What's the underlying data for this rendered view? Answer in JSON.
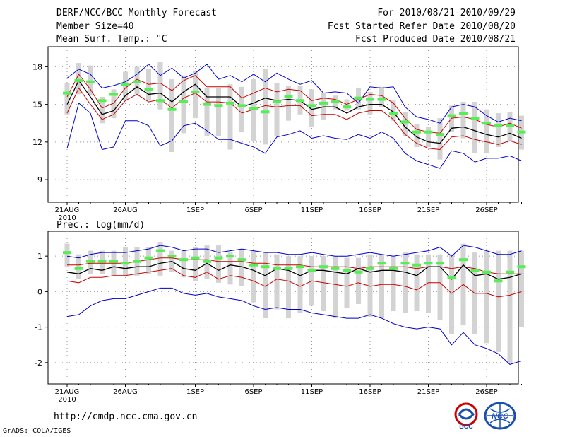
{
  "header": {
    "title": "DERF/NCC/BCC Monthly Forecast",
    "member_size": "Member Size=40",
    "variable": "Mean Surf. Temp.: °C",
    "forecast_period": "For 2010/08/21-2010/09/29",
    "start_date": "Fcst Started Refer Date 2010/08/20",
    "produced_date": "Fcst Produced Date 2010/08/21"
  },
  "footer": {
    "url": "http://cmdp.ncc.cma.gov.cn",
    "grads": "GrADS: COLA/IGES",
    "logo_left_text": "BCC",
    "logo_right_text": "NCC"
  },
  "colors": {
    "envelope": "#0000cc",
    "inner": "#cc0000",
    "mean": "#000000",
    "median": "#55ee55",
    "box": "#d3d3d3",
    "grid": "#999999"
  },
  "chart_data": [
    {
      "type": "box_line",
      "title": "Mean Surf. Temp.: °C",
      "ylabel": "Mean Surf. Temp. (°C)",
      "x_ticks": [
        "21AUG",
        "26AUG",
        "1SEP",
        "6SEP",
        "11SEP",
        "16SEP",
        "21SEP",
        "26SEP"
      ],
      "x_tick_days": [
        0,
        5,
        11,
        16,
        21,
        26,
        31,
        36
      ],
      "x_sublabel": "2010",
      "ylim": [
        7.2,
        19.6
      ],
      "y_ticks": [
        9,
        12,
        15,
        18
      ],
      "days": 40,
      "series": [
        {
          "name": "max",
          "color": "#0000cc",
          "values": [
            17.1,
            17.8,
            17.4,
            16.3,
            16.5,
            16.8,
            17.4,
            18.2,
            17.3,
            17.9,
            17.1,
            17.5,
            18.2,
            17.0,
            17.3,
            16.8,
            17.4,
            16.8,
            17.5,
            17.0,
            16.6,
            16.9,
            15.9,
            16.0,
            15.9,
            15.1,
            16.4,
            16.3,
            16.4,
            14.8,
            14.0,
            13.8,
            13.5,
            14.8,
            15.0,
            14.8,
            14.1,
            13.6,
            13.9,
            13.7
          ]
        },
        {
          "name": "upper",
          "color": "#cc0000",
          "values": [
            15.6,
            17.4,
            16.2,
            14.7,
            15.1,
            16.3,
            17.0,
            16.6,
            16.7,
            16.1,
            16.9,
            17.3,
            16.4,
            16.4,
            16.4,
            15.5,
            15.9,
            16.3,
            16.0,
            16.2,
            16.1,
            15.3,
            15.5,
            15.4,
            15.0,
            15.4,
            15.8,
            15.7,
            15.1,
            13.9,
            13.0,
            12.8,
            12.7,
            13.9,
            14.0,
            13.8,
            13.4,
            13.2,
            13.5,
            13.1
          ]
        },
        {
          "name": "mean",
          "color": "#000000",
          "values": [
            15.0,
            16.9,
            15.6,
            14.2,
            14.5,
            15.7,
            16.4,
            15.8,
            15.9,
            15.2,
            16.0,
            16.6,
            15.6,
            15.6,
            15.6,
            14.8,
            15.1,
            15.5,
            15.3,
            15.4,
            15.3,
            14.6,
            14.8,
            14.8,
            14.3,
            14.8,
            15.0,
            15.0,
            14.4,
            13.2,
            12.4,
            12.0,
            11.9,
            13.1,
            13.2,
            12.9,
            12.6,
            12.4,
            12.7,
            12.3
          ]
        },
        {
          "name": "lower",
          "color": "#cc0000",
          "values": [
            14.3,
            16.3,
            15.0,
            13.8,
            14.2,
            15.3,
            15.8,
            15.2,
            15.4,
            14.7,
            15.5,
            15.9,
            15.2,
            15.2,
            15.1,
            14.3,
            14.6,
            14.9,
            14.8,
            14.9,
            14.9,
            14.1,
            14.2,
            14.2,
            13.8,
            14.3,
            14.5,
            14.5,
            13.8,
            12.6,
            11.9,
            11.5,
            11.4,
            12.4,
            12.5,
            12.2,
            12.0,
            11.8,
            12.1,
            11.8
          ]
        },
        {
          "name": "min",
          "color": "#0000cc",
          "values": [
            11.5,
            15.1,
            14.3,
            11.4,
            11.6,
            13.7,
            13.7,
            13.3,
            11.7,
            12.1,
            13.3,
            13.5,
            12.9,
            12.2,
            12.2,
            11.9,
            11.6,
            11.1,
            12.4,
            12.6,
            12.9,
            12.3,
            12.5,
            12.3,
            12.2,
            12.6,
            12.3,
            12.8,
            12.3,
            11.1,
            10.5,
            10.2,
            9.9,
            11.3,
            11.1,
            10.4,
            10.7,
            10.7,
            10.9,
            10.5
          ]
        },
        {
          "name": "median",
          "color": "#55ee55",
          "values": [
            15.9,
            16.9,
            16.8,
            15.3,
            15.8,
            16.6,
            16.8,
            16.2,
            15.3,
            14.6,
            15.2,
            16.0,
            15.0,
            14.9,
            15.1,
            14.9,
            14.7,
            14.4,
            15.2,
            15.6,
            15.3,
            14.9,
            15.1,
            15.2,
            14.8,
            15.5,
            15.4,
            15.4,
            14.3,
            13.6,
            12.8,
            12.8,
            12.6,
            14.1,
            14.3,
            13.9,
            13.5,
            13.3,
            13.3,
            12.8
          ]
        }
      ],
      "boxes": {
        "top": [
          16.7,
          18.3,
          18.1,
          15.6,
          16.2,
          17.6,
          18.0,
          17.8,
          18.4,
          17.0,
          17.3,
          17.7,
          16.3,
          16.3,
          16.6,
          16.4,
          17.0,
          17.8,
          16.7,
          16.5,
          16.5,
          16.2,
          15.9,
          15.7,
          15.4,
          16.3,
          16.0,
          16.4,
          15.3,
          14.4,
          13.4,
          13.2,
          13.9,
          14.9,
          15.2,
          15.2,
          14.6,
          14.3,
          14.4,
          14.1
        ],
        "bottom": [
          14.2,
          15.8,
          15.7,
          13.5,
          13.9,
          15.3,
          15.8,
          15.3,
          14.6,
          11.2,
          12.7,
          13.9,
          12.5,
          12.5,
          11.4,
          12.8,
          12.1,
          11.8,
          12.5,
          13.7,
          14.2,
          13.2,
          13.8,
          14.6,
          14.5,
          14.6,
          14.2,
          14.8,
          13.7,
          12.5,
          11.6,
          11.6,
          10.6,
          12.8,
          12.3,
          11.1,
          11.1,
          11.6,
          12.1,
          11.4
        ]
      }
    },
    {
      "type": "box_line",
      "title": "Prec.: log(mm/d)",
      "ylabel": "log(mm/d)",
      "x_ticks": [
        "21AUG",
        "26AUG",
        "1SEP",
        "6SEP",
        "11SEP",
        "16SEP",
        "21SEP",
        "26SEP"
      ],
      "x_tick_days": [
        0,
        5,
        11,
        16,
        21,
        26,
        31,
        36
      ],
      "x_sublabel": "2010",
      "ylim": [
        -2.6,
        1.7
      ],
      "y_ticks": [
        -2,
        -1,
        0,
        1
      ],
      "days": 40,
      "series": [
        {
          "name": "max",
          "color": "#0000cc",
          "values": [
            1.0,
            0.95,
            1.05,
            1.1,
            1.1,
            1.1,
            1.15,
            1.2,
            1.3,
            1.25,
            1.15,
            1.2,
            1.2,
            1.1,
            1.15,
            1.2,
            1.15,
            1.1,
            1.1,
            1.05,
            1.05,
            1.1,
            1.05,
            1.0,
            1.0,
            1.05,
            1.1,
            1.05,
            1.0,
            1.05,
            1.1,
            1.15,
            1.25,
            1.0,
            1.3,
            1.25,
            1.15,
            1.05,
            1.05,
            1.15
          ]
        },
        {
          "name": "upper",
          "color": "#cc0000",
          "values": [
            0.75,
            0.75,
            0.8,
            0.8,
            0.8,
            0.8,
            0.85,
            0.9,
            0.95,
            0.95,
            0.9,
            0.9,
            0.9,
            0.85,
            0.85,
            0.85,
            0.8,
            0.8,
            0.75,
            0.75,
            0.75,
            0.7,
            0.7,
            0.7,
            0.7,
            0.65,
            0.7,
            0.7,
            0.7,
            0.7,
            0.65,
            0.7,
            0.7,
            0.65,
            0.7,
            0.65,
            0.55,
            0.5,
            0.5,
            0.5
          ]
        },
        {
          "name": "mean",
          "color": "#000000",
          "values": [
            0.55,
            0.5,
            0.65,
            0.6,
            0.7,
            0.65,
            0.7,
            0.7,
            0.8,
            0.85,
            0.65,
            0.6,
            0.8,
            0.6,
            0.75,
            0.7,
            0.6,
            0.45,
            0.65,
            0.6,
            0.45,
            0.6,
            0.6,
            0.55,
            0.5,
            0.65,
            0.55,
            0.6,
            0.6,
            0.55,
            0.45,
            0.7,
            0.7,
            0.35,
            0.75,
            0.45,
            0.5,
            0.35,
            0.4,
            0.5
          ]
        },
        {
          "name": "lower",
          "color": "#cc0000",
          "values": [
            0.3,
            0.25,
            0.4,
            0.4,
            0.45,
            0.45,
            0.5,
            0.55,
            0.6,
            0.65,
            0.45,
            0.4,
            0.55,
            0.35,
            0.45,
            0.4,
            0.3,
            0.15,
            0.35,
            0.3,
            0.15,
            0.3,
            0.25,
            0.2,
            0.15,
            0.25,
            0.15,
            0.2,
            0.2,
            0.15,
            0.05,
            0.25,
            0.25,
            -0.05,
            0.2,
            -0.05,
            -0.05,
            -0.15,
            -0.1,
            0.0
          ]
        },
        {
          "name": "min",
          "color": "#0000cc",
          "values": [
            -0.7,
            -0.65,
            -0.4,
            -0.25,
            -0.2,
            -0.2,
            -0.1,
            0.0,
            0.1,
            0.1,
            -0.05,
            -0.1,
            -0.05,
            -0.15,
            -0.2,
            -0.25,
            -0.4,
            -0.5,
            -0.45,
            -0.5,
            -0.5,
            -0.6,
            -0.65,
            -0.7,
            -0.75,
            -0.75,
            -0.65,
            -0.75,
            -0.9,
            -1.0,
            -1.05,
            -1.0,
            -1.05,
            -1.5,
            -1.15,
            -1.5,
            -1.6,
            -1.75,
            -2.05,
            -1.95
          ]
        },
        {
          "name": "median",
          "color": "#55ee55",
          "values": [
            1.1,
            0.65,
            0.85,
            0.85,
            0.85,
            0.8,
            0.85,
            0.95,
            1.15,
            1.0,
            0.9,
            0.95,
            0.85,
            0.95,
            1.0,
            0.9,
            0.75,
            0.7,
            0.65,
            0.65,
            0.7,
            0.6,
            0.7,
            0.65,
            0.6,
            0.55,
            0.65,
            0.8,
            0.65,
            0.8,
            0.75,
            0.8,
            0.8,
            0.4,
            0.9,
            0.6,
            0.55,
            0.3,
            0.55,
            0.7
          ]
        }
      ],
      "boxes": {
        "top": [
          1.35,
          1.05,
          1.15,
          1.15,
          1.15,
          1.25,
          1.25,
          1.25,
          1.4,
          1.15,
          1.15,
          1.25,
          1.3,
          1.3,
          1.1,
          1.2,
          1.15,
          1.1,
          1.05,
          1.0,
          1.0,
          1.0,
          1.0,
          1.0,
          0.95,
          0.95,
          1.05,
          1.05,
          1.0,
          1.1,
          1.05,
          1.05,
          1.05,
          1.05,
          1.35,
          1.1,
          1.15,
          1.15,
          1.15,
          1.15
        ],
        "bottom": [
          0.7,
          0.35,
          0.5,
          0.5,
          0.45,
          0.45,
          0.45,
          0.5,
          0.45,
          0.55,
          0.4,
          0.3,
          0.35,
          0.25,
          0.2,
          0.15,
          -0.3,
          -0.75,
          -0.5,
          -0.75,
          -0.6,
          -0.4,
          -0.55,
          -0.75,
          -0.45,
          -0.35,
          -0.7,
          -0.75,
          -0.55,
          -0.6,
          -0.55,
          -0.6,
          -0.8,
          -1.2,
          -0.95,
          -1.2,
          -1.45,
          -1.7,
          -2.0,
          -1.0
        ]
      }
    }
  ]
}
